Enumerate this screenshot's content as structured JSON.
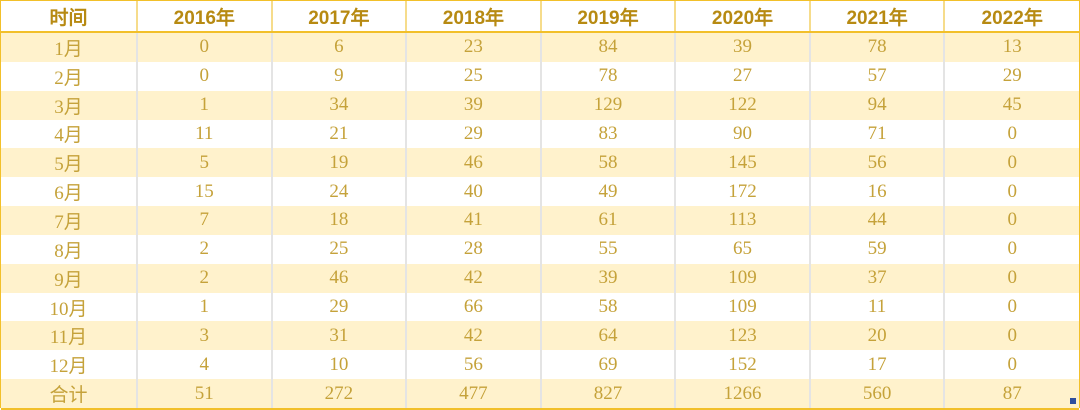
{
  "table": {
    "headers": [
      "时间",
      "2016年",
      "2017年",
      "2018年",
      "2019年",
      "2020年",
      "2021年",
      "2022年"
    ],
    "rows": [
      [
        "1月",
        "0",
        "6",
        "23",
        "84",
        "39",
        "78",
        "13"
      ],
      [
        "2月",
        "0",
        "9",
        "25",
        "78",
        "27",
        "57",
        "29"
      ],
      [
        "3月",
        "1",
        "34",
        "39",
        "129",
        "122",
        "94",
        "45"
      ],
      [
        "4月",
        "11",
        "21",
        "29",
        "83",
        "90",
        "71",
        "0"
      ],
      [
        "5月",
        "5",
        "19",
        "46",
        "58",
        "145",
        "56",
        "0"
      ],
      [
        "6月",
        "15",
        "24",
        "40",
        "49",
        "172",
        "16",
        "0"
      ],
      [
        "7月",
        "7",
        "18",
        "41",
        "61",
        "113",
        "44",
        "0"
      ],
      [
        "8月",
        "2",
        "25",
        "28",
        "55",
        "65",
        "59",
        "0"
      ],
      [
        "9月",
        "2",
        "46",
        "42",
        "39",
        "109",
        "37",
        "0"
      ],
      [
        "10月",
        "1",
        "29",
        "66",
        "58",
        "109",
        "11",
        "0"
      ],
      [
        "11月",
        "3",
        "31",
        "42",
        "64",
        "123",
        "20",
        "0"
      ],
      [
        "12月",
        "4",
        "10",
        "56",
        "69",
        "152",
        "17",
        "0"
      ],
      [
        "合计",
        "51",
        "272",
        "477",
        "827",
        "1266",
        "560",
        "87"
      ]
    ]
  },
  "colors": {
    "border": "#f2c02a",
    "header_text": "#b78a12",
    "band": "#fff2cc",
    "cell_text": "#c5a23a"
  }
}
